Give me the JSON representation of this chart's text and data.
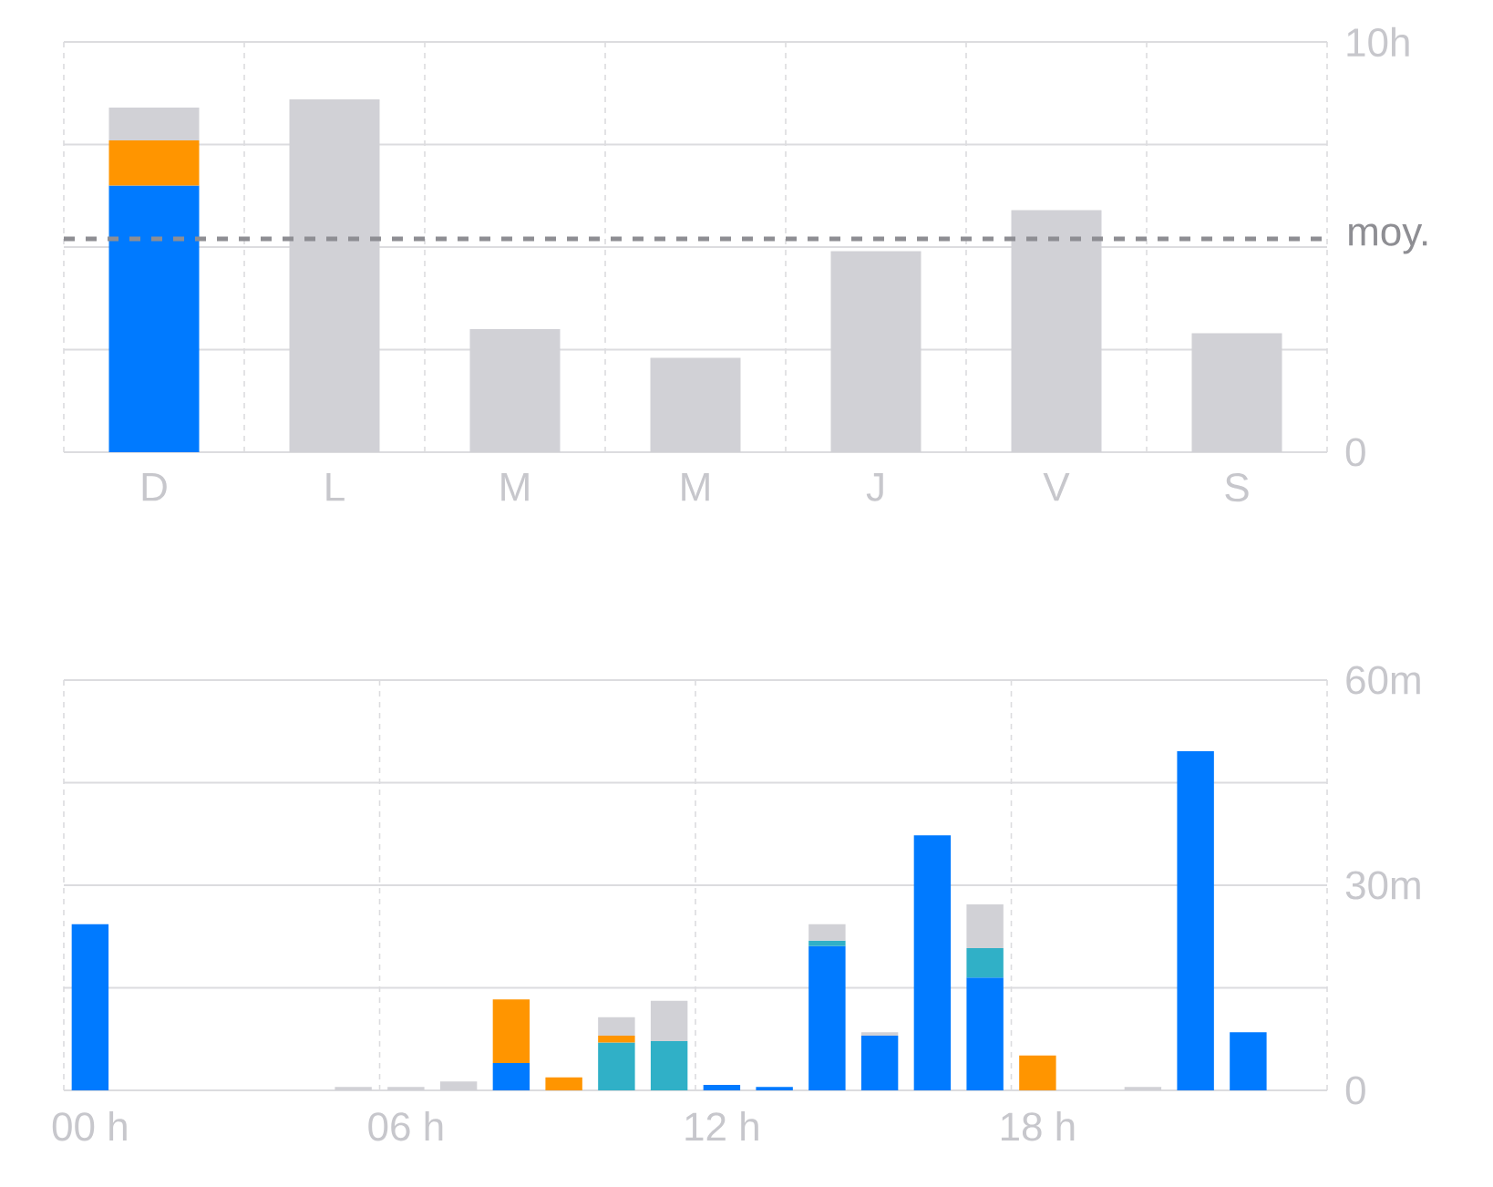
{
  "chart_data": [
    {
      "type": "bar",
      "stacked": true,
      "grid": true,
      "categories": [
        "D",
        "L",
        "M",
        "M",
        "J",
        "V",
        "S"
      ],
      "series": [
        {
          "color": "#007aff",
          "values": [
            6.5,
            null,
            null,
            null,
            null,
            null,
            null
          ]
        },
        {
          "color": "#ff9500",
          "values": [
            1.1,
            null,
            null,
            null,
            null,
            null,
            null
          ]
        },
        {
          "color": "#d1d1d6",
          "values": [
            0.8,
            8.6,
            3.0,
            2.3,
            4.9,
            5.9,
            2.9
          ]
        }
      ],
      "ylim": [
        0,
        10
      ],
      "yticks": [
        0,
        {
          "value": 2.5,
          "label": null
        },
        {
          "value": 5,
          "label": null
        },
        {
          "value": 7.5,
          "label": null
        },
        {
          "value": 10,
          "label": "10h"
        }
      ],
      "ref_lines": [
        {
          "axis": "y",
          "value": 5.2,
          "label": "moy.",
          "color": "#8e8e93",
          "line_style": "dashed"
        }
      ]
    },
    {
      "type": "bar",
      "stacked": true,
      "grid": true,
      "categories": [
        "00 h",
        null,
        null,
        null,
        null,
        null,
        "06 h",
        null,
        null,
        null,
        null,
        null,
        "12 h",
        null,
        null,
        null,
        null,
        null,
        "18 h",
        null,
        null,
        null,
        null,
        null
      ],
      "series": [
        {
          "color": "#007aff",
          "values": [
            24.3,
            null,
            null,
            null,
            null,
            null,
            null,
            null,
            4.0,
            null,
            null,
            null,
            0.8,
            0.5,
            21.1,
            8.0,
            37.3,
            16.5,
            null,
            null,
            null,
            49.6,
            8.5,
            null
          ]
        },
        {
          "color": "#30b0c7",
          "values": [
            null,
            null,
            null,
            null,
            null,
            null,
            null,
            null,
            null,
            null,
            7.0,
            7.2,
            null,
            null,
            0.8,
            null,
            null,
            4.3,
            null,
            null,
            null,
            null,
            null,
            null
          ]
        },
        {
          "color": "#ff9500",
          "values": [
            null,
            null,
            null,
            null,
            null,
            null,
            null,
            null,
            9.3,
            1.9,
            1.0,
            null,
            null,
            null,
            null,
            null,
            null,
            null,
            5.1,
            null,
            null,
            null,
            null,
            null
          ]
        },
        {
          "color": "#d1d1d6",
          "values": [
            null,
            null,
            null,
            null,
            null,
            0.5,
            0.5,
            1.3,
            null,
            null,
            2.7,
            5.9,
            null,
            null,
            2.4,
            0.5,
            null,
            6.4,
            null,
            null,
            0.5,
            null,
            null,
            null
          ]
        }
      ],
      "ylim": [
        0,
        60
      ],
      "yticks": [
        0,
        {
          "value": 15,
          "label": null
        },
        {
          "value": 30,
          "label": "30m"
        },
        {
          "value": 45,
          "label": null
        },
        {
          "value": 60,
          "label": "60m"
        }
      ]
    }
  ]
}
